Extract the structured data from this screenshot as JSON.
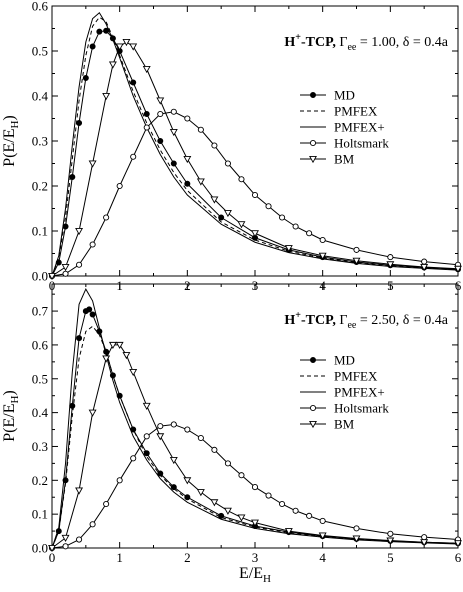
{
  "figure": {
    "xlabel": "E/E_H",
    "ylabel": "P(E/E_H)"
  },
  "chart_data": [
    {
      "type": "line",
      "panel": "top",
      "title_parts": {
        "main": "H",
        "main_sup": "+",
        "rest": "-TCP, ",
        "gamma": "Γ",
        "gamma_sub": "ee",
        "eq": " = 1.00, ",
        "delta": "δ",
        "tail": " = 0.4a"
      },
      "xlim": [
        0,
        6
      ],
      "ylim": [
        0,
        0.6
      ],
      "xticks": [
        0,
        1,
        2,
        3,
        4,
        5,
        6
      ],
      "yticks": [
        0,
        0.1,
        0.2,
        0.3,
        0.4,
        0.5,
        0.6
      ],
      "ytick_labels": [
        "0.0",
        "0.1",
        "0.2",
        "0.3",
        "0.4",
        "0.5",
        "0.6"
      ],
      "legend": "right",
      "series": [
        {
          "name": "MD",
          "style": "filled-circle-line",
          "points": [
            [
              0,
              0
            ],
            [
              0.1,
              0.03
            ],
            [
              0.2,
              0.11
            ],
            [
              0.3,
              0.22
            ],
            [
              0.4,
              0.34
            ],
            [
              0.5,
              0.44
            ],
            [
              0.6,
              0.51
            ],
            [
              0.7,
              0.543
            ],
            [
              0.8,
              0.545
            ],
            [
              0.9,
              0.528
            ],
            [
              1.0,
              0.5
            ],
            [
              1.2,
              0.43
            ],
            [
              1.4,
              0.36
            ],
            [
              1.6,
              0.3
            ],
            [
              1.8,
              0.25
            ],
            [
              2.0,
              0.205
            ],
            [
              2.5,
              0.13
            ],
            [
              3.0,
              0.085
            ],
            [
              3.5,
              0.058
            ],
            [
              4.0,
              0.042
            ],
            [
              4.5,
              0.031
            ],
            [
              5.0,
              0.024
            ],
            [
              5.5,
              0.019
            ],
            [
              6.0,
              0.015
            ]
          ]
        },
        {
          "name": "PMFEX",
          "style": "dashed",
          "points": [
            [
              0,
              0
            ],
            [
              0.1,
              0.04
            ],
            [
              0.2,
              0.13
            ],
            [
              0.3,
              0.26
            ],
            [
              0.4,
              0.39
            ],
            [
              0.5,
              0.49
            ],
            [
              0.6,
              0.555
            ],
            [
              0.7,
              0.575
            ],
            [
              0.8,
              0.565
            ],
            [
              0.9,
              0.53
            ],
            [
              1.0,
              0.49
            ],
            [
              1.2,
              0.41
            ],
            [
              1.4,
              0.34
            ],
            [
              1.6,
              0.28
            ],
            [
              1.8,
              0.23
            ],
            [
              2.0,
              0.19
            ],
            [
              2.5,
              0.12
            ],
            [
              3.0,
              0.08
            ],
            [
              3.5,
              0.055
            ],
            [
              4.0,
              0.04
            ],
            [
              4.5,
              0.03
            ],
            [
              5.0,
              0.023
            ],
            [
              5.5,
              0.018
            ],
            [
              6.0,
              0.014
            ]
          ]
        },
        {
          "name": "PMFEX+",
          "style": "solid",
          "points": [
            [
              0,
              0
            ],
            [
              0.1,
              0.045
            ],
            [
              0.2,
              0.15
            ],
            [
              0.3,
              0.29
            ],
            [
              0.4,
              0.42
            ],
            [
              0.5,
              0.52
            ],
            [
              0.6,
              0.572
            ],
            [
              0.7,
              0.585
            ],
            [
              0.8,
              0.56
            ],
            [
              0.9,
              0.525
            ],
            [
              1.0,
              0.485
            ],
            [
              1.2,
              0.4
            ],
            [
              1.4,
              0.33
            ],
            [
              1.6,
              0.27
            ],
            [
              1.8,
              0.22
            ],
            [
              2.0,
              0.18
            ],
            [
              2.5,
              0.115
            ],
            [
              3.0,
              0.075
            ],
            [
              3.5,
              0.052
            ],
            [
              4.0,
              0.038
            ],
            [
              4.5,
              0.028
            ],
            [
              5.0,
              0.021
            ],
            [
              5.5,
              0.017
            ],
            [
              6.0,
              0.013
            ]
          ]
        },
        {
          "name": "Holtsmark",
          "style": "open-circle-line",
          "points": [
            [
              0,
              0
            ],
            [
              0.2,
              0.005
            ],
            [
              0.4,
              0.025
            ],
            [
              0.6,
              0.07
            ],
            [
              0.8,
              0.13
            ],
            [
              1.0,
              0.2
            ],
            [
              1.2,
              0.265
            ],
            [
              1.4,
              0.33
            ],
            [
              1.6,
              0.36
            ],
            [
              1.8,
              0.365
            ],
            [
              2.0,
              0.35
            ],
            [
              2.2,
              0.325
            ],
            [
              2.4,
              0.29
            ],
            [
              2.6,
              0.25
            ],
            [
              2.8,
              0.215
            ],
            [
              3.0,
              0.18
            ],
            [
              3.2,
              0.155
            ],
            [
              3.4,
              0.13
            ],
            [
              3.6,
              0.11
            ],
            [
              3.8,
              0.095
            ],
            [
              4.0,
              0.08
            ],
            [
              4.5,
              0.058
            ],
            [
              5.0,
              0.042
            ],
            [
              5.5,
              0.032
            ],
            [
              6.0,
              0.025
            ]
          ]
        },
        {
          "name": "BM",
          "style": "open-triangle-line",
          "points": [
            [
              0,
              0
            ],
            [
              0.2,
              0.02
            ],
            [
              0.4,
              0.1
            ],
            [
              0.6,
              0.25
            ],
            [
              0.8,
              0.4
            ],
            [
              0.9,
              0.47
            ],
            [
              1.0,
              0.51
            ],
            [
              1.1,
              0.52
            ],
            [
              1.2,
              0.51
            ],
            [
              1.4,
              0.46
            ],
            [
              1.6,
              0.39
            ],
            [
              1.8,
              0.32
            ],
            [
              2.0,
              0.26
            ],
            [
              2.2,
              0.21
            ],
            [
              2.4,
              0.17
            ],
            [
              2.6,
              0.14
            ],
            [
              2.8,
              0.115
            ],
            [
              3.0,
              0.095
            ],
            [
              3.5,
              0.062
            ],
            [
              4.0,
              0.045
            ],
            [
              4.5,
              0.034
            ],
            [
              5.0,
              0.026
            ],
            [
              5.5,
              0.02
            ],
            [
              6.0,
              0.016
            ]
          ]
        }
      ]
    },
    {
      "type": "line",
      "panel": "bottom",
      "title_parts": {
        "main": "H",
        "main_sup": "+",
        "rest": "-TCP, ",
        "gamma": "Γ",
        "gamma_sub": "ee",
        "eq": " = 2.50, ",
        "delta": "δ",
        "tail": " = 0.4a"
      },
      "xlim": [
        0,
        6
      ],
      "ylim": [
        0,
        0.78
      ],
      "xticks": [
        0,
        1,
        2,
        3,
        4,
        5,
        6
      ],
      "yticks": [
        0,
        0.1,
        0.2,
        0.3,
        0.4,
        0.5,
        0.6,
        0.7
      ],
      "ytick_labels": [
        "0.0",
        "0.1",
        "0.2",
        "0.3",
        "0.4",
        "0.5",
        "0.6",
        "0.7"
      ],
      "legend": "right",
      "series": [
        {
          "name": "MD",
          "style": "filled-circle-line",
          "points": [
            [
              0,
              0
            ],
            [
              0.1,
              0.05
            ],
            [
              0.2,
              0.2
            ],
            [
              0.3,
              0.42
            ],
            [
              0.4,
              0.62
            ],
            [
              0.5,
              0.7
            ],
            [
              0.55,
              0.705
            ],
            [
              0.6,
              0.69
            ],
            [
              0.7,
              0.64
            ],
            [
              0.8,
              0.58
            ],
            [
              0.9,
              0.51
            ],
            [
              1.0,
              0.45
            ],
            [
              1.2,
              0.35
            ],
            [
              1.4,
              0.28
            ],
            [
              1.6,
              0.22
            ],
            [
              1.8,
              0.18
            ],
            [
              2.0,
              0.15
            ],
            [
              2.5,
              0.095
            ],
            [
              3.0,
              0.065
            ],
            [
              3.5,
              0.047
            ],
            [
              4.0,
              0.035
            ],
            [
              4.5,
              0.027
            ],
            [
              5.0,
              0.021
            ],
            [
              5.5,
              0.017
            ],
            [
              6.0,
              0.014
            ]
          ]
        },
        {
          "name": "PMFEX",
          "style": "dashed",
          "points": [
            [
              0,
              0
            ],
            [
              0.1,
              0.05
            ],
            [
              0.2,
              0.19
            ],
            [
              0.3,
              0.39
            ],
            [
              0.4,
              0.56
            ],
            [
              0.5,
              0.64
            ],
            [
              0.6,
              0.655
            ],
            [
              0.7,
              0.63
            ],
            [
              0.8,
              0.58
            ],
            [
              0.9,
              0.51
            ],
            [
              1.0,
              0.45
            ],
            [
              1.2,
              0.35
            ],
            [
              1.4,
              0.27
            ],
            [
              1.6,
              0.215
            ],
            [
              1.8,
              0.175
            ],
            [
              2.0,
              0.145
            ],
            [
              2.5,
              0.09
            ],
            [
              3.0,
              0.062
            ],
            [
              3.5,
              0.045
            ],
            [
              4.0,
              0.034
            ],
            [
              4.5,
              0.026
            ],
            [
              5.0,
              0.02
            ],
            [
              5.5,
              0.016
            ],
            [
              6.0,
              0.013
            ]
          ]
        },
        {
          "name": "PMFEX+",
          "style": "solid",
          "points": [
            [
              0,
              0
            ],
            [
              0.1,
              0.06
            ],
            [
              0.2,
              0.25
            ],
            [
              0.3,
              0.52
            ],
            [
              0.4,
              0.72
            ],
            [
              0.5,
              0.765
            ],
            [
              0.6,
              0.73
            ],
            [
              0.7,
              0.65
            ],
            [
              0.8,
              0.57
            ],
            [
              0.9,
              0.495
            ],
            [
              1.0,
              0.43
            ],
            [
              1.2,
              0.33
            ],
            [
              1.4,
              0.26
            ],
            [
              1.6,
              0.205
            ],
            [
              1.8,
              0.165
            ],
            [
              2.0,
              0.135
            ],
            [
              2.5,
              0.085
            ],
            [
              3.0,
              0.058
            ],
            [
              3.5,
              0.042
            ],
            [
              4.0,
              0.032
            ],
            [
              4.5,
              0.024
            ],
            [
              5.0,
              0.019
            ],
            [
              5.5,
              0.015
            ],
            [
              6.0,
              0.012
            ]
          ]
        },
        {
          "name": "Holtsmark",
          "style": "open-circle-line",
          "points": [
            [
              0,
              0
            ],
            [
              0.2,
              0.005
            ],
            [
              0.4,
              0.025
            ],
            [
              0.6,
              0.07
            ],
            [
              0.8,
              0.13
            ],
            [
              1.0,
              0.2
            ],
            [
              1.2,
              0.265
            ],
            [
              1.4,
              0.33
            ],
            [
              1.6,
              0.36
            ],
            [
              1.8,
              0.365
            ],
            [
              2.0,
              0.35
            ],
            [
              2.2,
              0.325
            ],
            [
              2.4,
              0.29
            ],
            [
              2.6,
              0.25
            ],
            [
              2.8,
              0.215
            ],
            [
              3.0,
              0.18
            ],
            [
              3.2,
              0.155
            ],
            [
              3.4,
              0.13
            ],
            [
              3.6,
              0.11
            ],
            [
              3.8,
              0.095
            ],
            [
              4.0,
              0.08
            ],
            [
              4.5,
              0.058
            ],
            [
              5.0,
              0.042
            ],
            [
              5.5,
              0.032
            ],
            [
              6.0,
              0.025
            ]
          ]
        },
        {
          "name": "BM",
          "style": "open-triangle-line",
          "points": [
            [
              0,
              0
            ],
            [
              0.2,
              0.03
            ],
            [
              0.4,
              0.17
            ],
            [
              0.6,
              0.4
            ],
            [
              0.8,
              0.56
            ],
            [
              0.9,
              0.6
            ],
            [
              1.0,
              0.6
            ],
            [
              1.1,
              0.57
            ],
            [
              1.2,
              0.52
            ],
            [
              1.4,
              0.42
            ],
            [
              1.6,
              0.33
            ],
            [
              1.8,
              0.26
            ],
            [
              2.0,
              0.2
            ],
            [
              2.2,
              0.165
            ],
            [
              2.4,
              0.135
            ],
            [
              2.6,
              0.11
            ],
            [
              2.8,
              0.09
            ],
            [
              3.0,
              0.075
            ],
            [
              3.5,
              0.05
            ],
            [
              4.0,
              0.037
            ],
            [
              4.5,
              0.028
            ],
            [
              5.0,
              0.022
            ],
            [
              5.5,
              0.017
            ],
            [
              6.0,
              0.014
            ]
          ]
        }
      ]
    }
  ]
}
